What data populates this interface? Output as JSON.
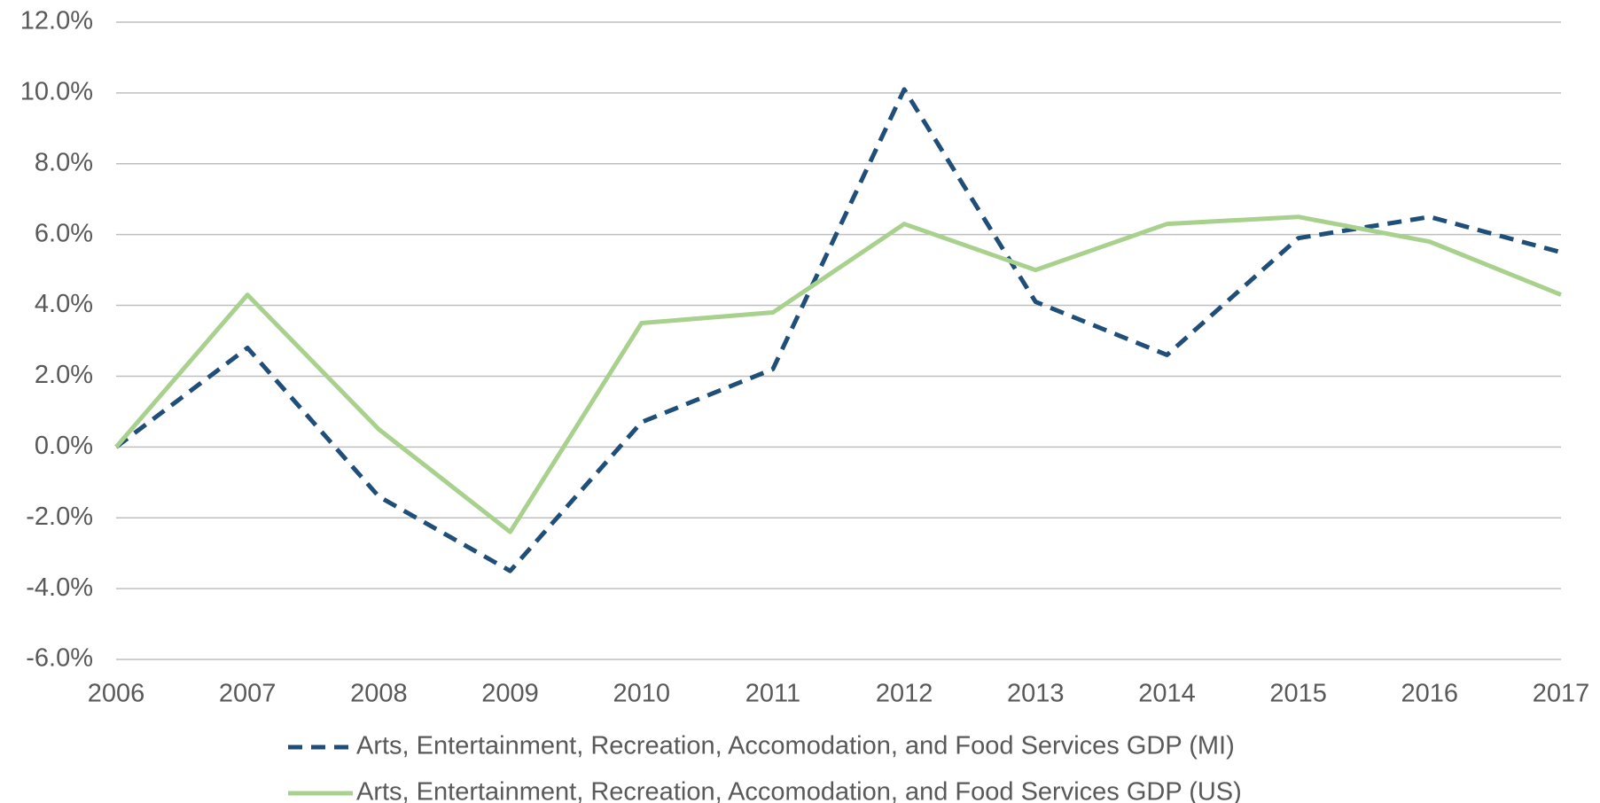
{
  "chart_data": {
    "type": "line",
    "categories": [
      "2006",
      "2007",
      "2008",
      "2009",
      "2010",
      "2011",
      "2012",
      "2013",
      "2014",
      "2015",
      "2016",
      "2017"
    ],
    "series": [
      {
        "name": "Arts, Entertainment, Recreation, Accomodation, and Food Services GDP (MI)",
        "color": "#1f4e79",
        "dashed": true,
        "values": [
          0,
          2.8,
          -1.4,
          -3.5,
          0.7,
          2.2,
          10.1,
          4.1,
          2.6,
          5.9,
          6.5,
          5.5
        ]
      },
      {
        "name": "Arts, Entertainment, Recreation, Accomodation, and Food Services GDP (US)",
        "color": "#a9d18e",
        "dashed": false,
        "values": [
          0,
          4.3,
          0.5,
          -2.4,
          3.5,
          3.8,
          6.3,
          5.0,
          6.3,
          6.5,
          5.8,
          4.3
        ]
      }
    ],
    "ylim": [
      -6,
      12
    ],
    "yticks": [
      {
        "value": -6,
        "label": "-6.0%"
      },
      {
        "value": -4,
        "label": "-4.0%"
      },
      {
        "value": -2,
        "label": "-2.0%"
      },
      {
        "value": 0,
        "label": "0.0%"
      },
      {
        "value": 2,
        "label": "2.0%"
      },
      {
        "value": 4,
        "label": "4.0%"
      },
      {
        "value": 6,
        "label": "6.0%"
      },
      {
        "value": 8,
        "label": "8.0%"
      },
      {
        "value": 10,
        "label": "10.0%"
      },
      {
        "value": 12,
        "label": "12.0%"
      }
    ],
    "grid": true,
    "legend": "bottom"
  }
}
